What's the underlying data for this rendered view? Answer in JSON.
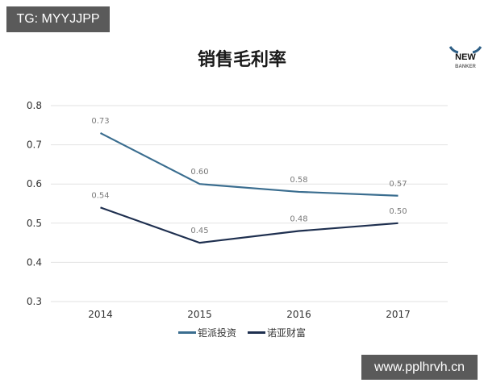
{
  "watermarks": {
    "top_left": "TG: MYYJJPP",
    "bottom_right": "www.pplhrvh.cn"
  },
  "logo": {
    "top": "NEW",
    "bottom": "BANKER"
  },
  "colors": {
    "series1": "#3a6d8f",
    "series2": "#1e2f4f",
    "grid": "#e2e2e2",
    "label": "#7a7a7a",
    "axis_text": "#333333"
  },
  "chart_data": {
    "type": "line",
    "title": "销售毛利率",
    "xlabel": "",
    "ylabel": "",
    "categories": [
      "2014",
      "2015",
      "2016",
      "2017"
    ],
    "series": [
      {
        "name": "钜派投资",
        "values": [
          0.73,
          0.6,
          0.58,
          0.57
        ],
        "labels": [
          "0.73",
          "0.60",
          "0.58",
          "0.57"
        ]
      },
      {
        "name": "诺亚财富",
        "values": [
          0.54,
          0.45,
          0.48,
          0.5
        ],
        "labels": [
          "0.54",
          "0.45",
          "0.48",
          "0.50"
        ]
      }
    ],
    "ylim": [
      0.3,
      0.8
    ],
    "yticks": [
      "0.3",
      "0.4",
      "0.5",
      "0.6",
      "0.7",
      "0.8"
    ],
    "grid": true,
    "legend_position": "bottom"
  }
}
